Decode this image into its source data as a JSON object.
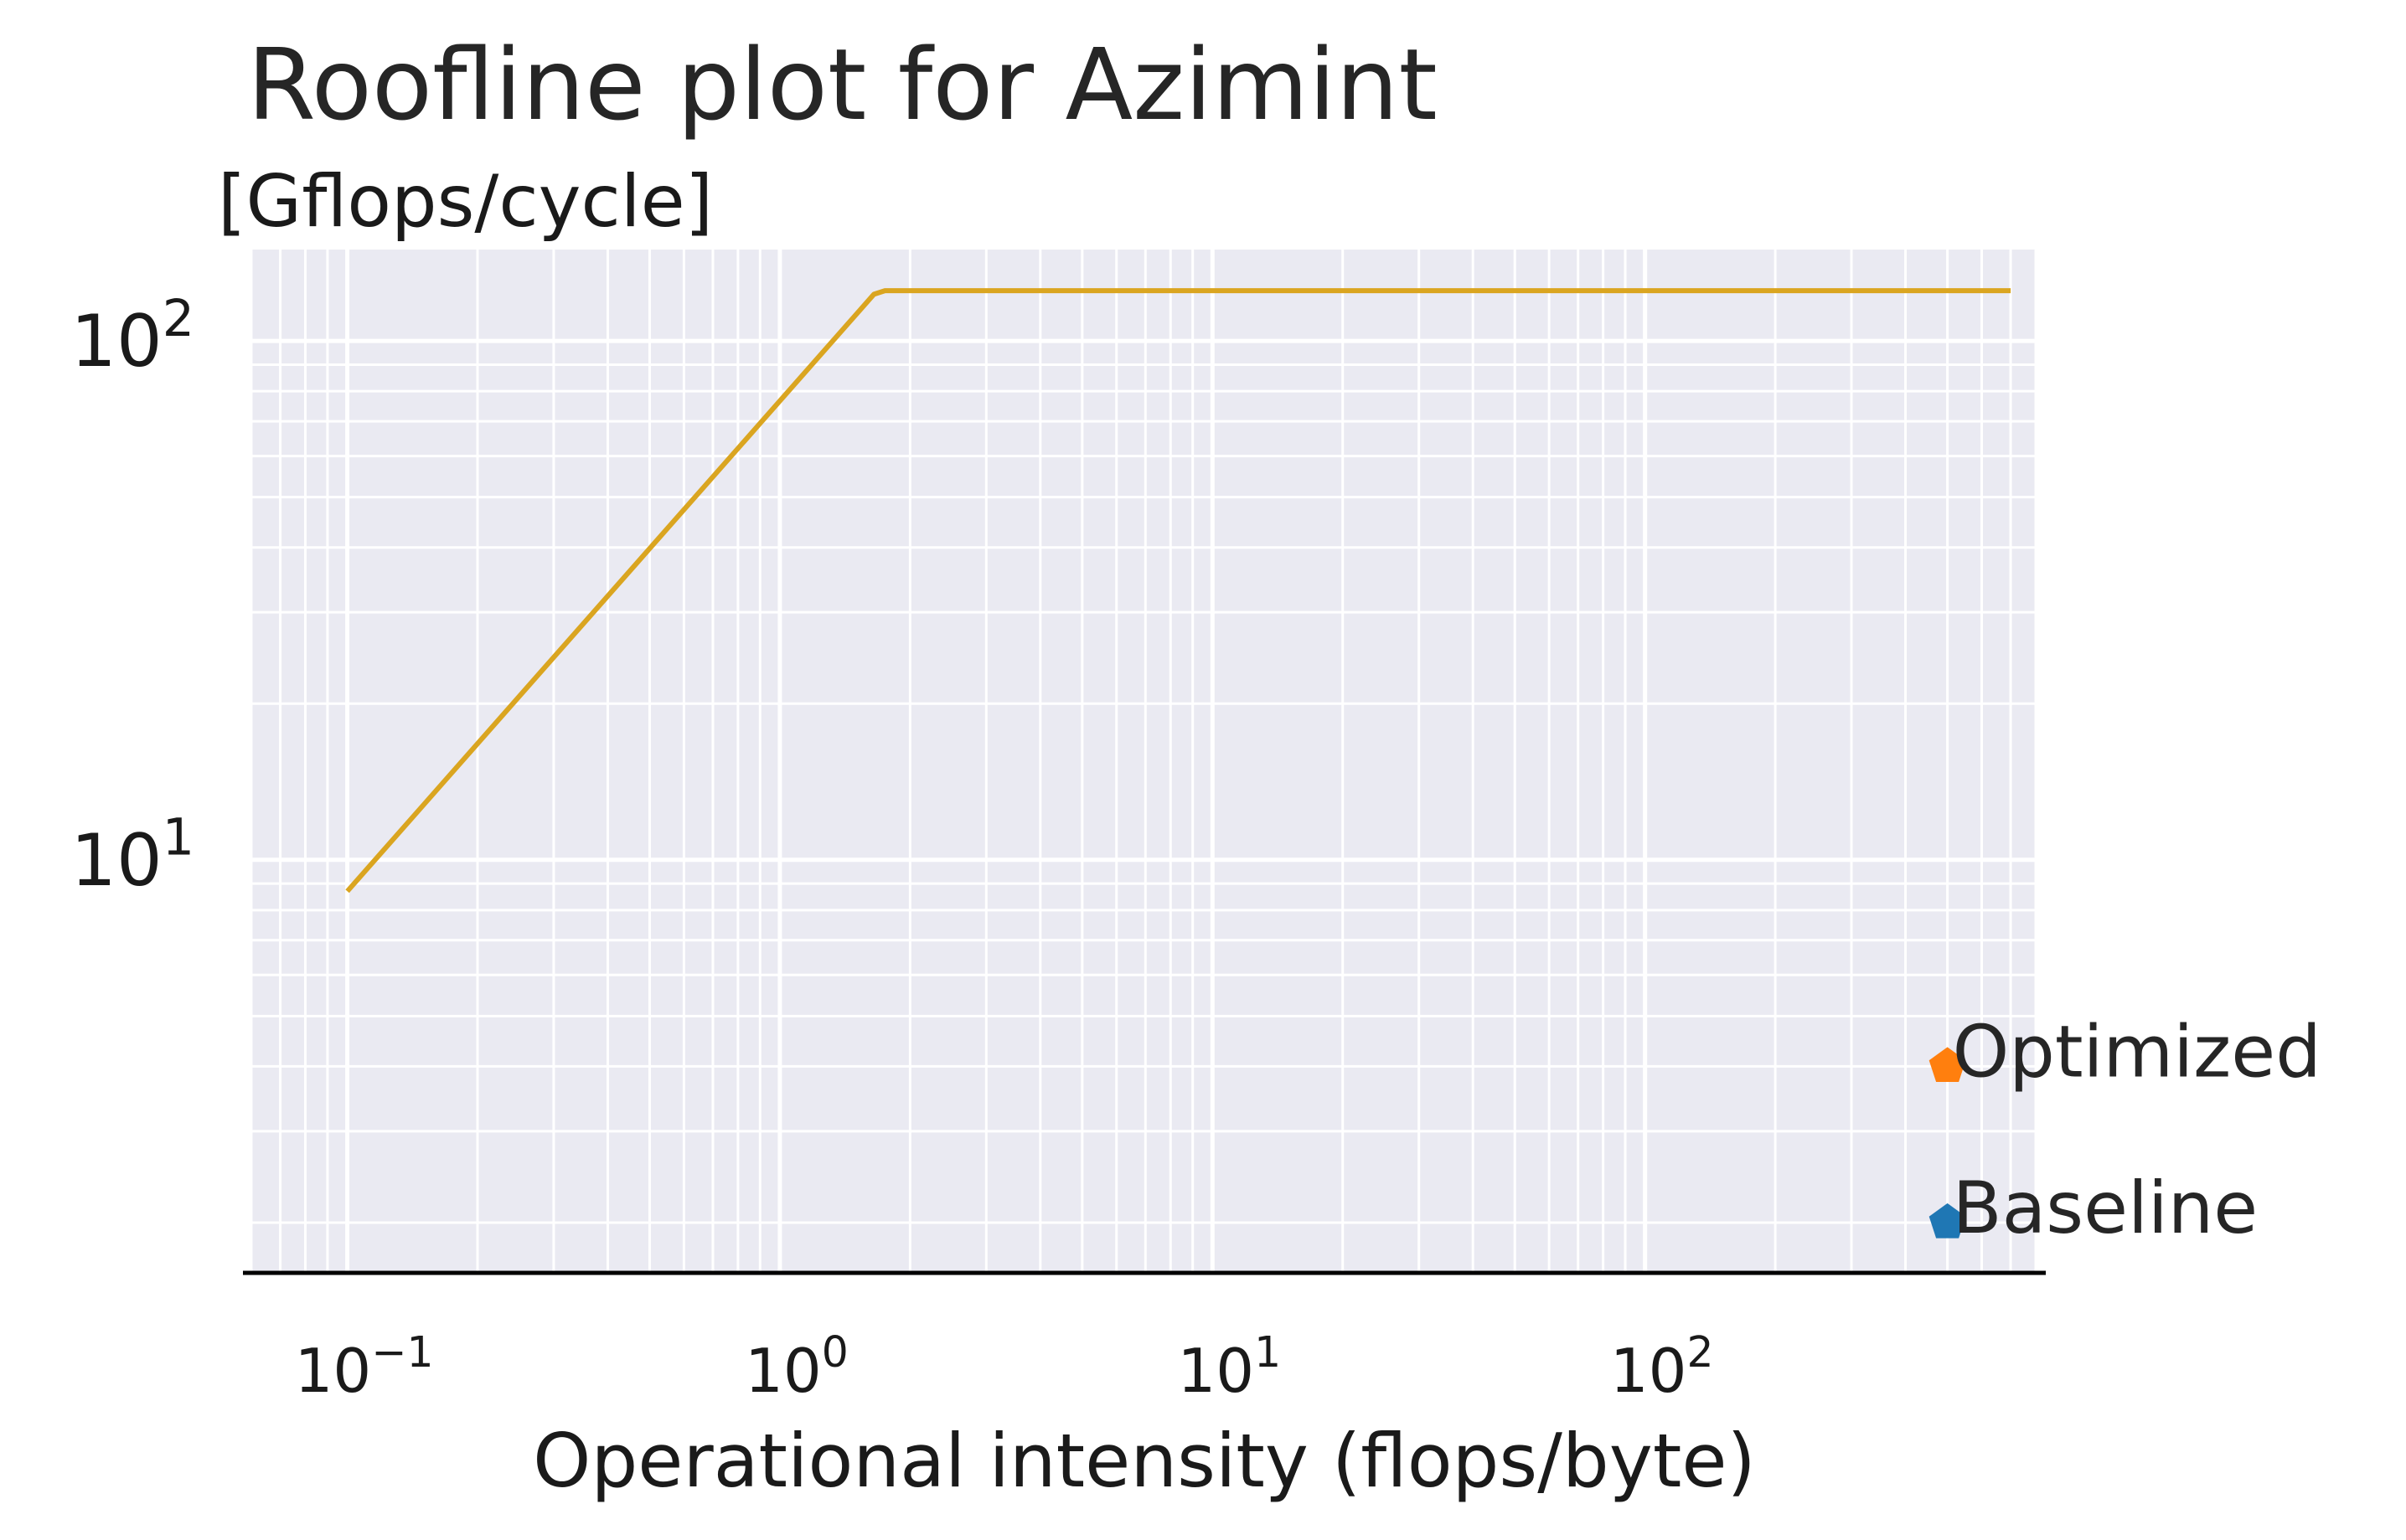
{
  "chart_data": {
    "type": "line",
    "title": "Roofline plot for Azimint",
    "ylabel": "[Gflops/cycle]",
    "xlabel": "Operational intensity (flops/byte)",
    "xscale": "log",
    "yscale": "log",
    "xlim": [
      0.06,
      800
    ],
    "ylim": [
      1.6,
      150
    ],
    "xticks": [
      {
        "value": 0.1,
        "base": "10",
        "exp": "−1"
      },
      {
        "value": 1,
        "base": "10",
        "exp": "0"
      },
      {
        "value": 10,
        "base": "10",
        "exp": "1"
      },
      {
        "value": 100,
        "base": "10",
        "exp": "2"
      }
    ],
    "yticks": [
      {
        "value": 10,
        "base": "10",
        "exp": "1"
      },
      {
        "value": 100,
        "base": "10",
        "exp": "2"
      }
    ],
    "grid": true,
    "series": [
      {
        "color": "#DAA520",
        "x": [
          0.1,
          1.65,
          1.75,
          700
        ],
        "y": [
          8.7,
          123,
          125,
          125
        ]
      }
    ],
    "points": [
      {
        "label": "Optimized",
        "x": 500,
        "y": 4.0,
        "color": "#ff7f0e"
      },
      {
        "label": "Baseline",
        "x": 500,
        "y": 2.0,
        "color": "#1f77b4"
      }
    ]
  }
}
